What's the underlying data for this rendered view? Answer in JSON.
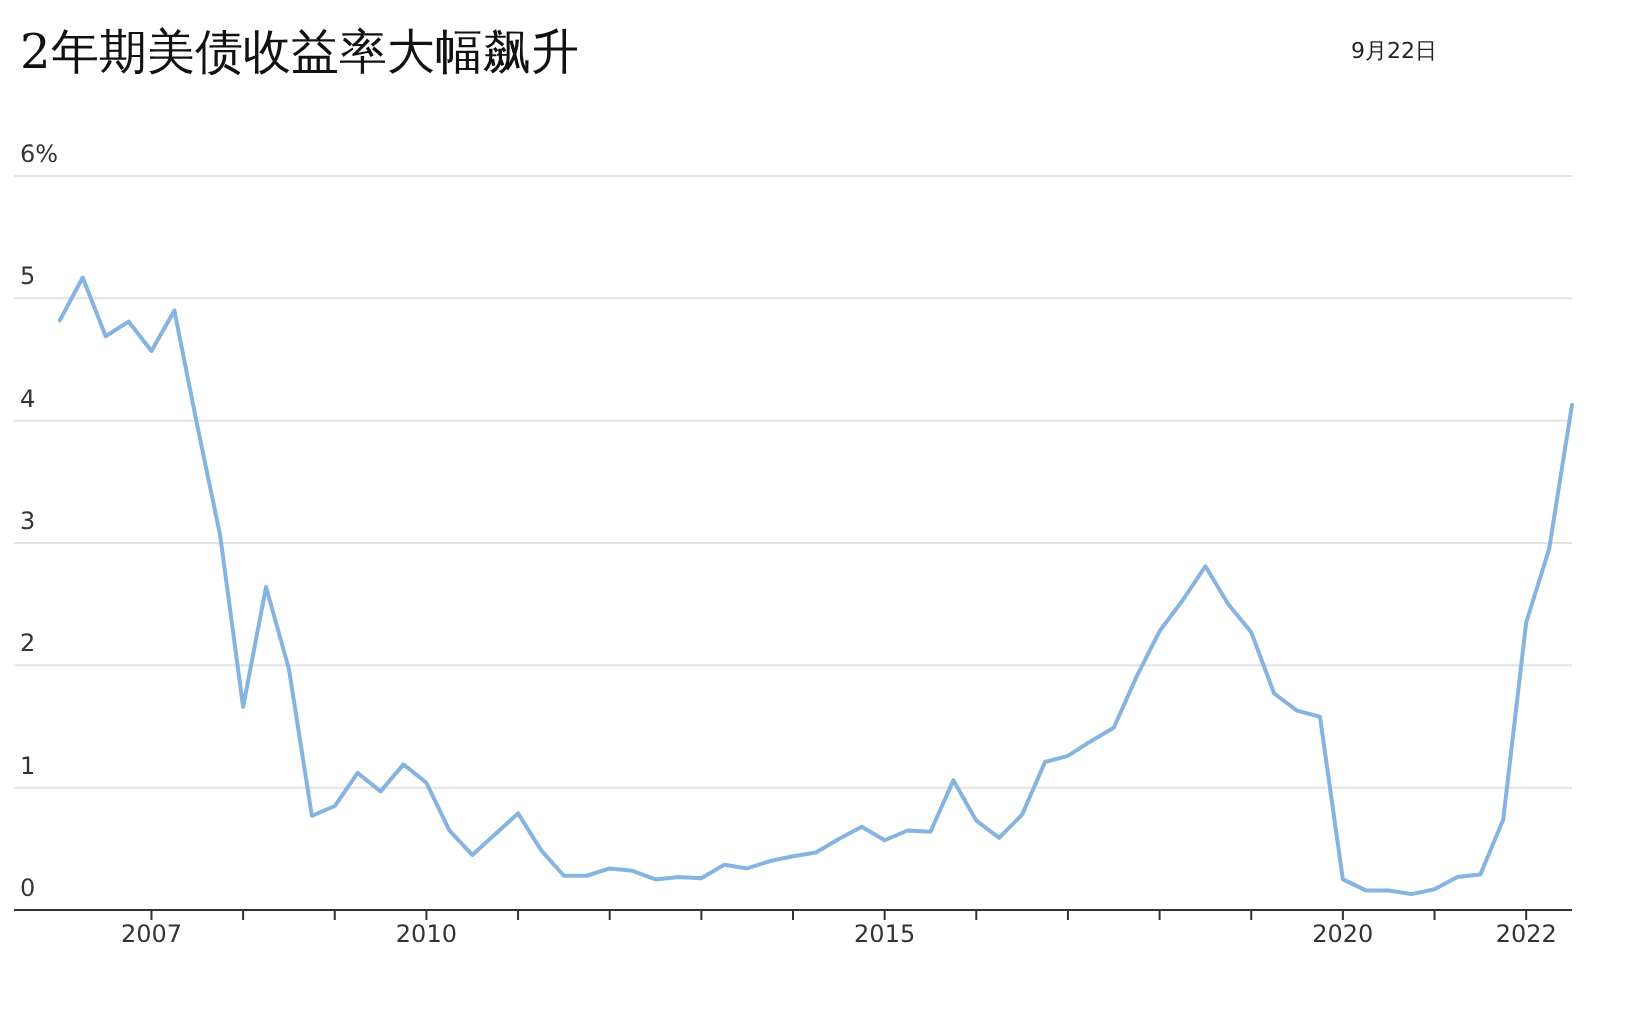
{
  "chart_data": {
    "type": "line",
    "title": "2年期美债收益率大幅飙升",
    "annotations": [
      "9月22日"
    ],
    "x": [
      "2006-01",
      "2006-04",
      "2006-07",
      "2006-10",
      "2007-01",
      "2007-04",
      "2007-07",
      "2007-10",
      "2008-01",
      "2008-04",
      "2008-07",
      "2008-10",
      "2009-01",
      "2009-04",
      "2009-07",
      "2009-10",
      "2010-01",
      "2010-04",
      "2010-07",
      "2010-10",
      "2011-01",
      "2011-04",
      "2011-07",
      "2011-10",
      "2012-01",
      "2012-04",
      "2012-07",
      "2012-10",
      "2013-01",
      "2013-04",
      "2013-07",
      "2013-10",
      "2014-01",
      "2014-04",
      "2014-07",
      "2014-10",
      "2015-01",
      "2015-04",
      "2015-07",
      "2015-10",
      "2016-01",
      "2016-04",
      "2016-07",
      "2016-10",
      "2017-01",
      "2017-04",
      "2017-07",
      "2017-10",
      "2018-01",
      "2018-04",
      "2018-07",
      "2018-10",
      "2019-01",
      "2019-04",
      "2019-07",
      "2019-10",
      "2020-01",
      "2020-04",
      "2020-07",
      "2020-10",
      "2021-01",
      "2021-04",
      "2021-07",
      "2021-10",
      "2022-01",
      "2022-04",
      "2022-07"
    ],
    "series": [
      {
        "color": "#86b4e0",
        "values": [
          4.82,
          5.17,
          4.69,
          4.81,
          4.57,
          4.9,
          3.96,
          3.06,
          1.66,
          2.64,
          1.97,
          0.77,
          0.85,
          1.12,
          0.97,
          1.19,
          1.04,
          0.65,
          0.45,
          0.62,
          0.79,
          0.49,
          0.28,
          0.28,
          0.34,
          0.32,
          0.25,
          0.27,
          0.26,
          0.37,
          0.34,
          0.4,
          0.44,
          0.47,
          0.58,
          0.68,
          0.57,
          0.65,
          0.64,
          1.06,
          0.73,
          0.59,
          0.78,
          1.21,
          1.26,
          1.38,
          1.49,
          1.91,
          2.28,
          2.53,
          2.81,
          2.5,
          2.27,
          1.77,
          1.63,
          1.58,
          0.25,
          0.16,
          0.16,
          0.13,
          0.17,
          0.27,
          0.29,
          0.74,
          2.35,
          2.95,
          4.13
        ]
      }
    ],
    "xlim": [
      "2005-07",
      "2022-07"
    ],
    "xticks": [
      {
        "value": "2007",
        "label": "2007"
      },
      {
        "value": "2008",
        "label": null
      },
      {
        "value": "2009",
        "label": null
      },
      {
        "value": "2010",
        "label": "2010"
      },
      {
        "value": "2011",
        "label": null
      },
      {
        "value": "2012",
        "label": null
      },
      {
        "value": "2013",
        "label": null
      },
      {
        "value": "2014",
        "label": null
      },
      {
        "value": "2015",
        "label": "2015"
      },
      {
        "value": "2016",
        "label": null
      },
      {
        "value": "2017",
        "label": null
      },
      {
        "value": "2018",
        "label": null
      },
      {
        "value": "2019",
        "label": null
      },
      {
        "value": "2020",
        "label": "2020"
      },
      {
        "value": "2021",
        "label": null
      },
      {
        "value": "2022",
        "label": "2022"
      }
    ],
    "ylim": [
      0,
      6
    ],
    "yticks": [
      0,
      1,
      2,
      3,
      4,
      5,
      {
        "value": 6,
        "label": "6%"
      }
    ],
    "grid": "y",
    "marker": "none",
    "line_style": "solid"
  }
}
